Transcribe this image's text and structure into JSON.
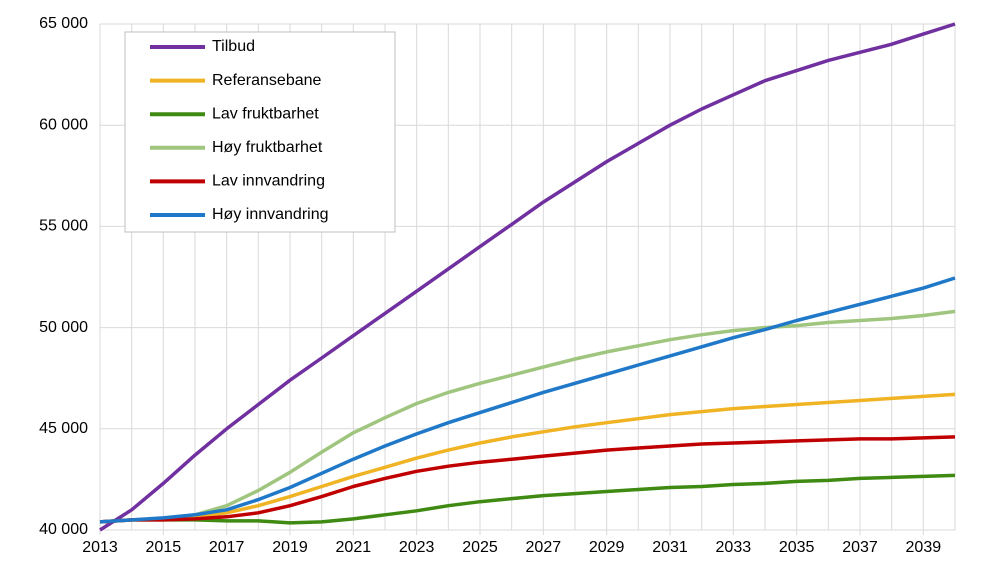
{
  "chart_data": {
    "type": "line",
    "x": [
      2013,
      2014,
      2015,
      2016,
      2017,
      2018,
      2019,
      2020,
      2021,
      2022,
      2023,
      2024,
      2025,
      2026,
      2027,
      2028,
      2029,
      2030,
      2031,
      2032,
      2033,
      2034,
      2035,
      2036,
      2037,
      2038,
      2039,
      2040
    ],
    "xlim": [
      2013,
      2040
    ],
    "xticks": [
      2013,
      2015,
      2017,
      2019,
      2021,
      2023,
      2025,
      2027,
      2029,
      2031,
      2033,
      2035,
      2037,
      2039
    ],
    "ylim": [
      40000,
      65000
    ],
    "yticks": [
      {
        "value": 40000,
        "label": "40 000"
      },
      {
        "value": 45000,
        "label": "45 000"
      },
      {
        "value": 50000,
        "label": "50 000"
      },
      {
        "value": 55000,
        "label": "55 000"
      },
      {
        "value": 60000,
        "label": "60 000"
      },
      {
        "value": 65000,
        "label": "65 000"
      }
    ],
    "grid": true,
    "legend": "top-left",
    "series": [
      {
        "name": "Tilbud",
        "color": "#7030a0",
        "values": [
          40000,
          41000,
          42300,
          43700,
          45000,
          46200,
          47400,
          48500,
          49600,
          50700,
          51800,
          52900,
          54000,
          55100,
          56200,
          57200,
          58200,
          59100,
          60000,
          60800,
          61500,
          62200,
          62700,
          63200,
          63600,
          64000,
          64500,
          65000
        ]
      },
      {
        "name": "Referansebane",
        "color": "#f0b323",
        "values": [
          40400,
          40500,
          40550,
          40650,
          40850,
          41200,
          41650,
          42150,
          42650,
          43100,
          43550,
          43950,
          44300,
          44600,
          44850,
          45100,
          45300,
          45500,
          45700,
          45850,
          46000,
          46100,
          46200,
          46300,
          46400,
          46500,
          46600,
          46700
        ]
      },
      {
        "name": "Lav fruktbarhet",
        "color": "#3f8a12",
        "values": [
          40400,
          40500,
          40500,
          40500,
          40450,
          40450,
          40350,
          40400,
          40550,
          40750,
          40950,
          41200,
          41400,
          41550,
          41700,
          41800,
          41900,
          42000,
          42100,
          42150,
          42250,
          42300,
          42400,
          42450,
          42550,
          42600,
          42650,
          42700
        ]
      },
      {
        "name": "Høy fruktbarhet",
        "color": "#9fc57e",
        "values": [
          40400,
          40500,
          40550,
          40750,
          41200,
          41950,
          42850,
          43850,
          44800,
          45550,
          46250,
          46800,
          47250,
          47650,
          48050,
          48450,
          48800,
          49100,
          49400,
          49650,
          49850,
          50000,
          50100,
          50250,
          50350,
          50450,
          50600,
          50800
        ]
      },
      {
        "name": "Lav innvandring",
        "color": "#c00000",
        "values": [
          40400,
          40500,
          40500,
          40550,
          40650,
          40850,
          41200,
          41650,
          42150,
          42550,
          42900,
          43150,
          43350,
          43500,
          43650,
          43800,
          43950,
          44050,
          44150,
          44250,
          44300,
          44350,
          44400,
          44450,
          44500,
          44500,
          44550,
          44600
        ]
      },
      {
        "name": "Høy innvandring",
        "color": "#1f78c8",
        "values": [
          40400,
          40500,
          40600,
          40750,
          41000,
          41500,
          42100,
          42800,
          43500,
          44150,
          44750,
          45300,
          45800,
          46300,
          46800,
          47250,
          47700,
          48150,
          48600,
          49050,
          49500,
          49900,
          50350,
          50750,
          51150,
          51550,
          51950,
          52450
        ]
      }
    ]
  }
}
